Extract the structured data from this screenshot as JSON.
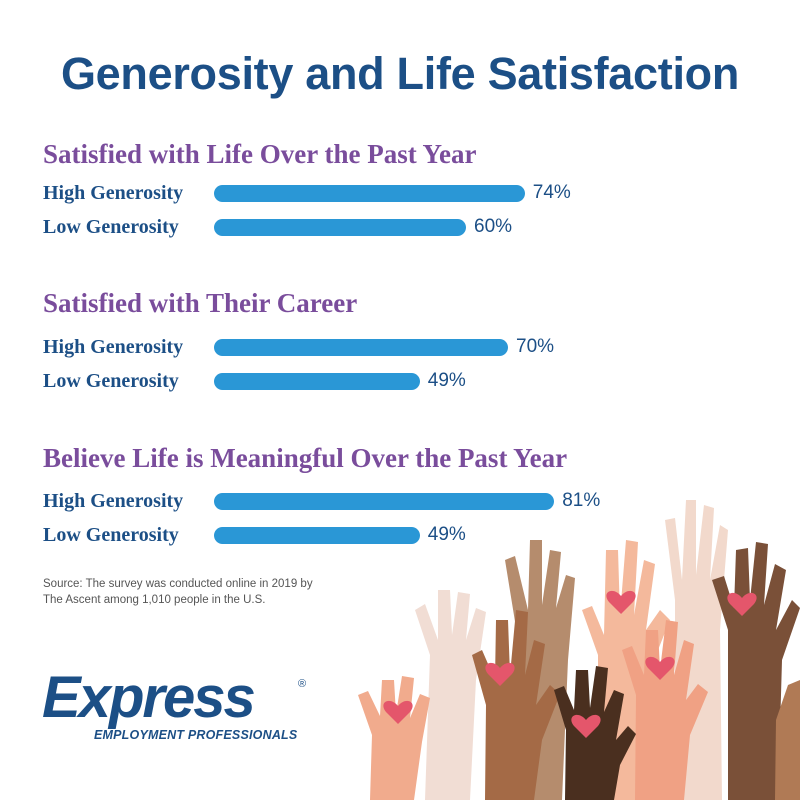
{
  "title": "Generosity and Life Satisfaction",
  "chart_data": {
    "type": "bar",
    "orientation": "horizontal",
    "unit": "%",
    "xlim": [
      0,
      100
    ],
    "groups": [
      {
        "title": "Satisfied with Life Over the Past Year",
        "bars": [
          {
            "label": "High Generosity",
            "value": 74,
            "display": "74%"
          },
          {
            "label": "Low Generosity",
            "value": 60,
            "display": "60%"
          }
        ]
      },
      {
        "title": "Satisfied with Their Career",
        "bars": [
          {
            "label": "High Generosity",
            "value": 70,
            "display": "70%"
          },
          {
            "label": "Low Generosity",
            "value": 49,
            "display": "49%"
          }
        ]
      },
      {
        "title": "Believe Life is Meaningful Over the Past Year",
        "bars": [
          {
            "label": "High Generosity",
            "value": 81,
            "display": "81%"
          },
          {
            "label": "Low Generosity",
            "value": 49,
            "display": "49%"
          }
        ]
      }
    ]
  },
  "source": {
    "line1": "Source: The survey was conducted online in 2019 by",
    "line2": "The Ascent among 1,010 people in the U.S."
  },
  "logo": {
    "name": "Express",
    "tagline": "EMPLOYMENT PROFESSIONALS",
    "mark": "®"
  },
  "colors": {
    "title": "#1c4f86",
    "section_title": "#7a4d9c",
    "bar": "#2a97d6",
    "heart": "#e4566b"
  }
}
